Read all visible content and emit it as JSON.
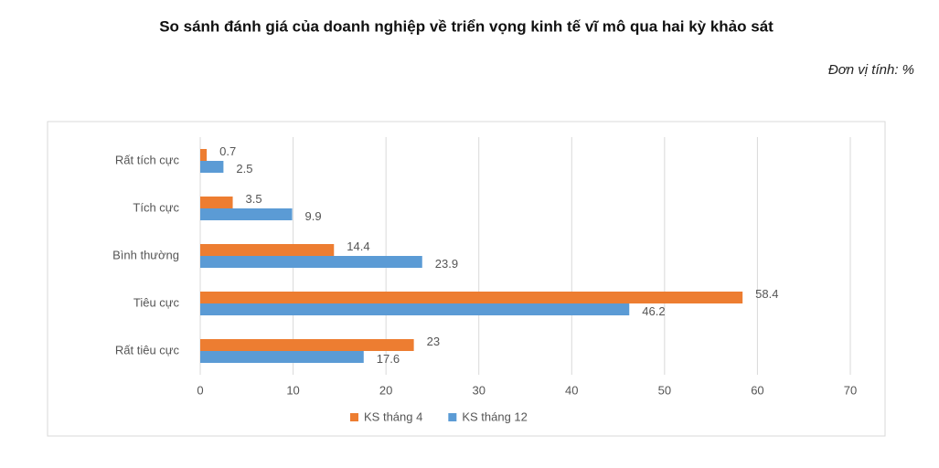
{
  "chart_data": {
    "type": "bar",
    "orientation": "horizontal",
    "title": "So sánh đánh giá của doanh nghiệp về triển vọng kinh tế vĩ mô qua hai kỳ khảo sát",
    "unit": "Đơn vị tính: %",
    "categories": [
      "Rất tích cực",
      "Tích cực",
      "Bình thường",
      "Tiêu cực",
      "Rất tiêu cực"
    ],
    "series": [
      {
        "name": "KS tháng 4",
        "color": "#ed7d31",
        "values": [
          0.7,
          3.5,
          14.4,
          58.4,
          23
        ]
      },
      {
        "name": "KS tháng 12",
        "color": "#5b9bd5",
        "values": [
          2.5,
          9.9,
          23.9,
          46.2,
          17.6
        ]
      }
    ],
    "xlim": [
      0,
      70
    ],
    "xticks": [
      0,
      10,
      20,
      30,
      40,
      50,
      60,
      70
    ],
    "grid": true,
    "legend": "bottom"
  }
}
